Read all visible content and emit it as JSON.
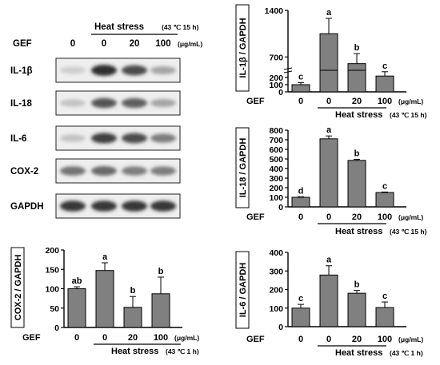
{
  "blot": {
    "treatment_title": "Heat stress",
    "treatment_condition": "(43 ℃ 15 h)",
    "row_label": "GEF",
    "doses": [
      "0",
      "0",
      "20",
      "100"
    ],
    "unit": "(μg/mL)",
    "bands": [
      "IL-1β",
      "IL-18",
      "IL-6",
      "COX-2",
      "GAPDH"
    ],
    "intensity": [
      [
        0.15,
        0.95,
        0.8,
        0.35
      ],
      [
        0.2,
        0.75,
        0.7,
        0.35
      ],
      [
        0.2,
        0.85,
        0.8,
        0.55
      ],
      [
        0.6,
        0.65,
        0.55,
        0.55
      ],
      [
        0.9,
        0.9,
        0.9,
        0.9
      ]
    ]
  },
  "chart_data": [
    {
      "id": "il1b",
      "type": "bar",
      "ylabel": "IL-1β / GAPDH",
      "ylim": [
        0,
        1400
      ],
      "axis_break": {
        "from": 300,
        "to": 500
      },
      "yticks": [
        "0",
        "100",
        "200",
        "700",
        "1400"
      ],
      "categories": [
        "0",
        "0",
        "20",
        "100"
      ],
      "values": [
        100,
        1050,
        600,
        220
      ],
      "errors": [
        30,
        230,
        150,
        60
      ],
      "letters": [
        "c",
        "a",
        "b",
        "c"
      ],
      "group_label": "GEF",
      "unit": "(μg/mL)",
      "treatment": "Heat stress",
      "condition": "(43 ℃ 15 h)"
    },
    {
      "id": "il18",
      "type": "bar",
      "ylabel": "IL-18 / GAPDH",
      "ylim": [
        0,
        800
      ],
      "yticks": [
        "0",
        "100",
        "200",
        "300",
        "400",
        "500",
        "600",
        "700",
        "800"
      ],
      "categories": [
        "0",
        "0",
        "20",
        "100"
      ],
      "values": [
        100,
        710,
        485,
        150
      ],
      "errors": [
        5,
        30,
        10,
        5
      ],
      "letters": [
        "d",
        "a",
        "b",
        "c"
      ],
      "group_label": "GEF",
      "unit": "(μg/mL)",
      "treatment": "Heat stress",
      "condition": "(43 ℃ 15 h)"
    },
    {
      "id": "cox2",
      "type": "bar",
      "ylabel": "COX-2 / GAPDH",
      "ylim": [
        0,
        200
      ],
      "yticks": [
        "0",
        "50",
        "100",
        "150",
        "200"
      ],
      "categories": [
        "0",
        "0",
        "20",
        "100"
      ],
      "values": [
        100,
        147,
        52,
        87
      ],
      "errors": [
        5,
        20,
        28,
        43
      ],
      "letters": [
        "ab",
        "a",
        "b",
        "b"
      ],
      "group_label": "GEF",
      "unit": "(μg/mL)",
      "treatment": "Heat stress",
      "condition": "(43 ℃ 1 h)"
    },
    {
      "id": "il6",
      "type": "bar",
      "ylabel": "IL-6 / GAPDH",
      "ylim": [
        0,
        400
      ],
      "yticks": [
        "0",
        "100",
        "200",
        "300",
        "400"
      ],
      "categories": [
        "0",
        "0",
        "20",
        "100"
      ],
      "values": [
        100,
        278,
        180,
        103
      ],
      "errors": [
        20,
        50,
        15,
        30
      ],
      "letters": [
        "c",
        "a",
        "b",
        "c"
      ],
      "group_label": "GEF",
      "unit": "(μg/mL)",
      "treatment": "Heat stress",
      "condition": "(43 ℃ 1 h)"
    }
  ]
}
